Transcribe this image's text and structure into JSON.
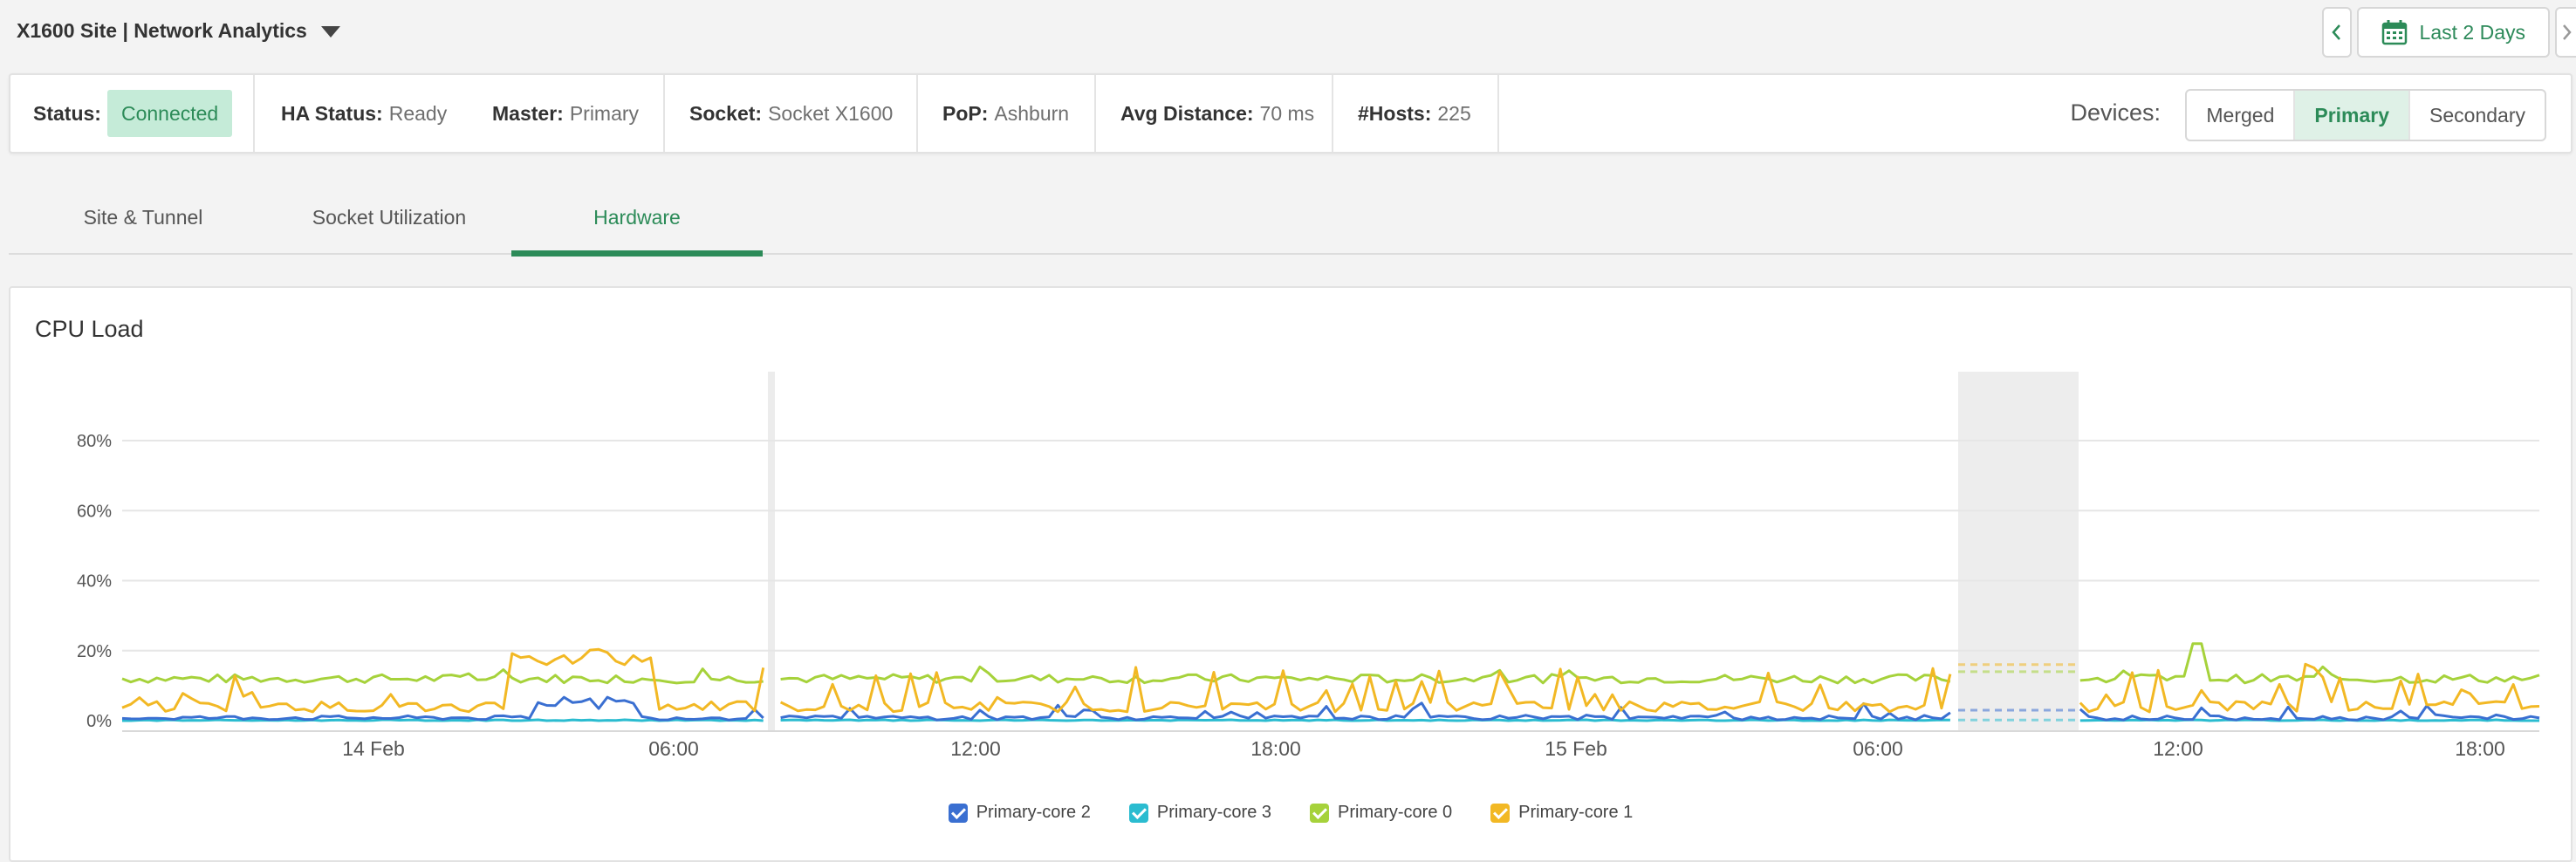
{
  "header": {
    "site_title": "X1600 Site | Network Analytics",
    "date_range_label": "Last 2 Days"
  },
  "status": {
    "status_label": "Status:",
    "status_value": "Connected",
    "ha_label": "HA Status:",
    "ha_value": "Ready",
    "master_label": "Master:",
    "master_value": "Primary",
    "socket_label": "Socket:",
    "socket_value": "Socket X1600",
    "pop_label": "PoP:",
    "pop_value": "Ashburn",
    "avgdist_label": "Avg Distance:",
    "avgdist_value": "70 ms",
    "hosts_label": "#Hosts:",
    "hosts_value": "225",
    "devices_label": "Devices:",
    "devices": [
      "Merged",
      "Primary",
      "Secondary"
    ],
    "devices_selected": "Primary"
  },
  "tabs": [
    {
      "label": "Site & Tunnel"
    },
    {
      "label": "Socket Utilization"
    },
    {
      "label": "Hardware"
    }
  ],
  "colors": {
    "accent": "#2c8b58",
    "core2": "#3a6fd1",
    "core3": "#2bbcd0",
    "core0": "#a6d23b",
    "core1": "#f2b824"
  },
  "chart_data": {
    "type": "line",
    "title": "CPU Load",
    "y_ticks": [
      "0%",
      "20%",
      "40%",
      "60%",
      "80%"
    ],
    "x_ticks": [
      "14 Feb",
      "06:00",
      "12:00",
      "18:00",
      "15 Feb",
      "06:00",
      "12:00",
      "18:00"
    ],
    "ylim": [
      0,
      100
    ],
    "series": [
      {
        "name": "Primary-core 2"
      },
      {
        "name": "Primary-core 3"
      },
      {
        "name": "Primary-core 0"
      },
      {
        "name": "Primary-core 1"
      }
    ]
  }
}
